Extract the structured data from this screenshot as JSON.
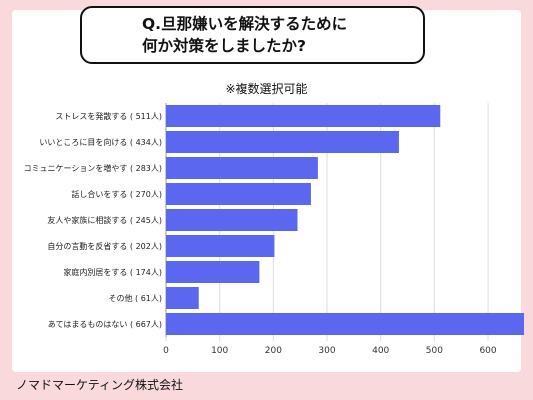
{
  "title_line1": "Q.旦那嫌いを解決するために",
  "title_line2": "何か対策をしましたか?",
  "subtitle": "※複数選択可能",
  "footer": "ノマドマーケティング株式会社",
  "colors": {
    "bar": "#5b67ef",
    "background": "#f9d9dc",
    "card": "#ffffff",
    "grid": "#dddddd"
  },
  "chart_data": {
    "type": "bar",
    "orientation": "horizontal",
    "categories": [
      "ストレスを発散する ( 511人)",
      "いいところに目を向ける ( 434人)",
      "コミュニケーションを増やす ( 283人)",
      "話し合いをする ( 270人)",
      "友人や家族に相談する ( 245人)",
      "自分の言動を反省する ( 202人)",
      "家庭内別居をする ( 174人)",
      "その他 ( 61人)",
      "あてはまるものはない ( 667人)"
    ],
    "values": [
      511,
      434,
      283,
      270,
      245,
      202,
      174,
      61,
      667
    ],
    "xlim": [
      0,
      667
    ],
    "xticks": [
      "0",
      "100",
      "200",
      "300",
      "400",
      "500",
      "600"
    ],
    "grid": true
  }
}
